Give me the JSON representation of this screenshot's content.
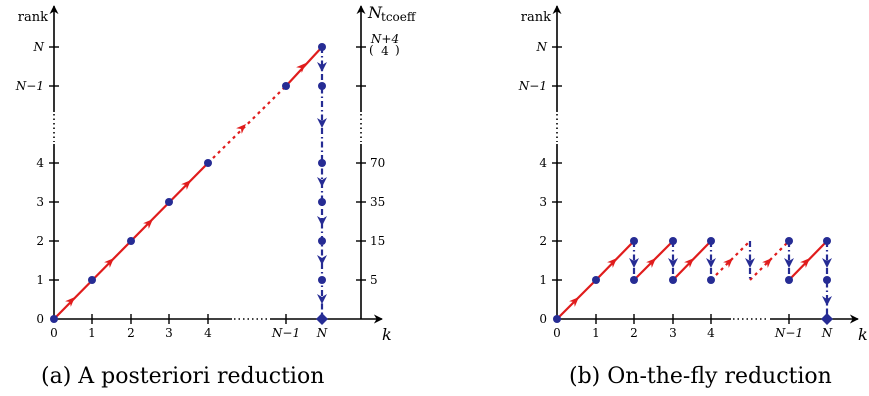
{
  "panels": [
    {
      "caption": "(a) A posteriori reduction",
      "y_axis_label": "rank",
      "x_axis_label": "k",
      "y_ticks": [
        "0",
        "1",
        "2",
        "3",
        "4",
        "N−1",
        "N"
      ],
      "x_ticks": [
        "0",
        "1",
        "2",
        "3",
        "4",
        "N−1",
        "N"
      ],
      "right_axis": {
        "label_main": "N",
        "label_sub": "tcoeff",
        "ticks": [
          "5",
          "15",
          "35",
          "70"
        ],
        "top_tick_upper": "N+4",
        "top_tick_lower": "4"
      }
    },
    {
      "caption": "(b) On-the-fly reduction",
      "y_axis_label": "rank",
      "x_axis_label": "k",
      "y_ticks": [
        "0",
        "1",
        "2",
        "3",
        "4",
        "N−1",
        "N"
      ],
      "x_ticks": [
        "0",
        "1",
        "2",
        "3",
        "4",
        "N−1",
        "N"
      ]
    }
  ],
  "colors": {
    "red": "#e01c1c",
    "blue": "#262c94",
    "axis": "#000000"
  }
}
